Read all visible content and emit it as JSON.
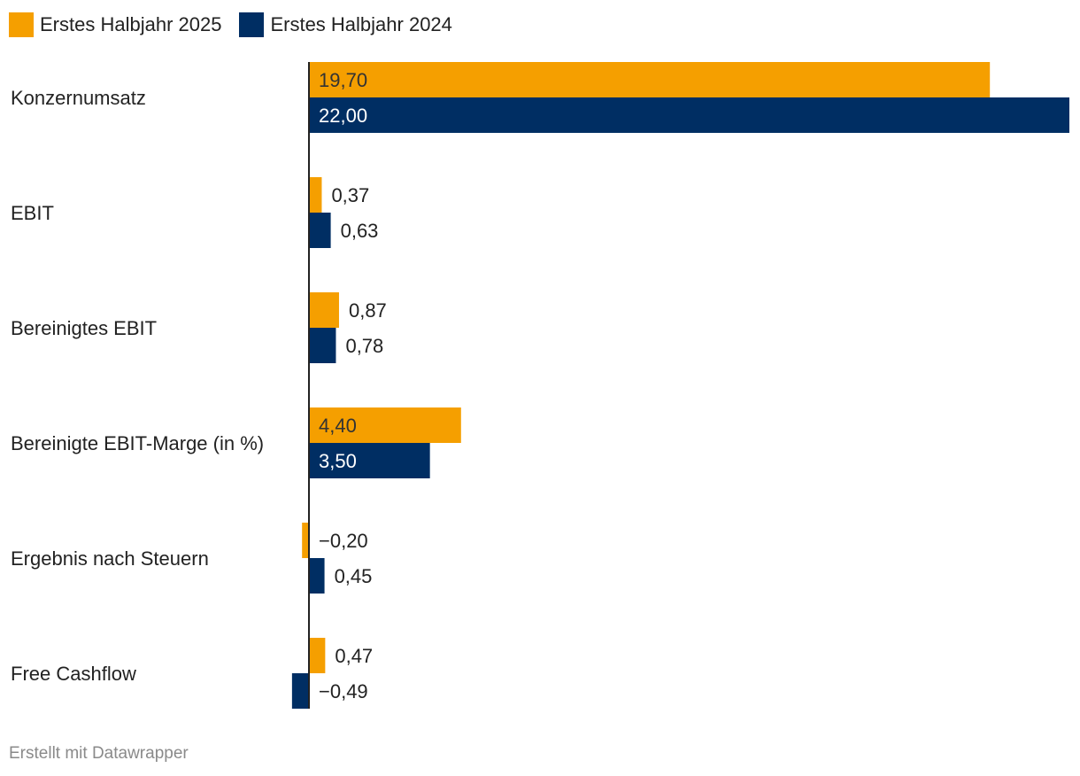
{
  "chart_data": {
    "type": "bar",
    "orientation": "horizontal",
    "categories": [
      "Konzernumsatz",
      "EBIT",
      "Bereinigtes EBIT",
      "Bereinigte EBIT-Marge (in %)",
      "Ergebnis nach Steuern",
      "Free Cashflow"
    ],
    "series": [
      {
        "name": "Erstes Halbjahr 2025",
        "color": "#f59f00",
        "values": [
          19.7,
          0.37,
          0.87,
          4.4,
          -0.2,
          0.47
        ],
        "labels": [
          "19,70",
          "0,37",
          "0,87",
          "4,40",
          "−0,20",
          "0,47"
        ]
      },
      {
        "name": "Erstes Halbjahr 2024",
        "color": "#002e63",
        "values": [
          22.0,
          0.63,
          0.78,
          3.5,
          0.45,
          -0.49
        ],
        "labels": [
          "22,00",
          "0,63",
          "0,78",
          "3,50",
          "0,45",
          "−0,49"
        ]
      }
    ],
    "xlim": [
      -0.5,
      22.0
    ],
    "legend_position": "top-left"
  },
  "legend": {
    "series_2025": "Erstes Halbjahr 2025",
    "series_2024": "Erstes Halbjahr 2024",
    "color_2025": "#f59f00",
    "color_2024": "#002e63"
  },
  "footer": {
    "credit": "Erstellt mit Datawrapper"
  }
}
